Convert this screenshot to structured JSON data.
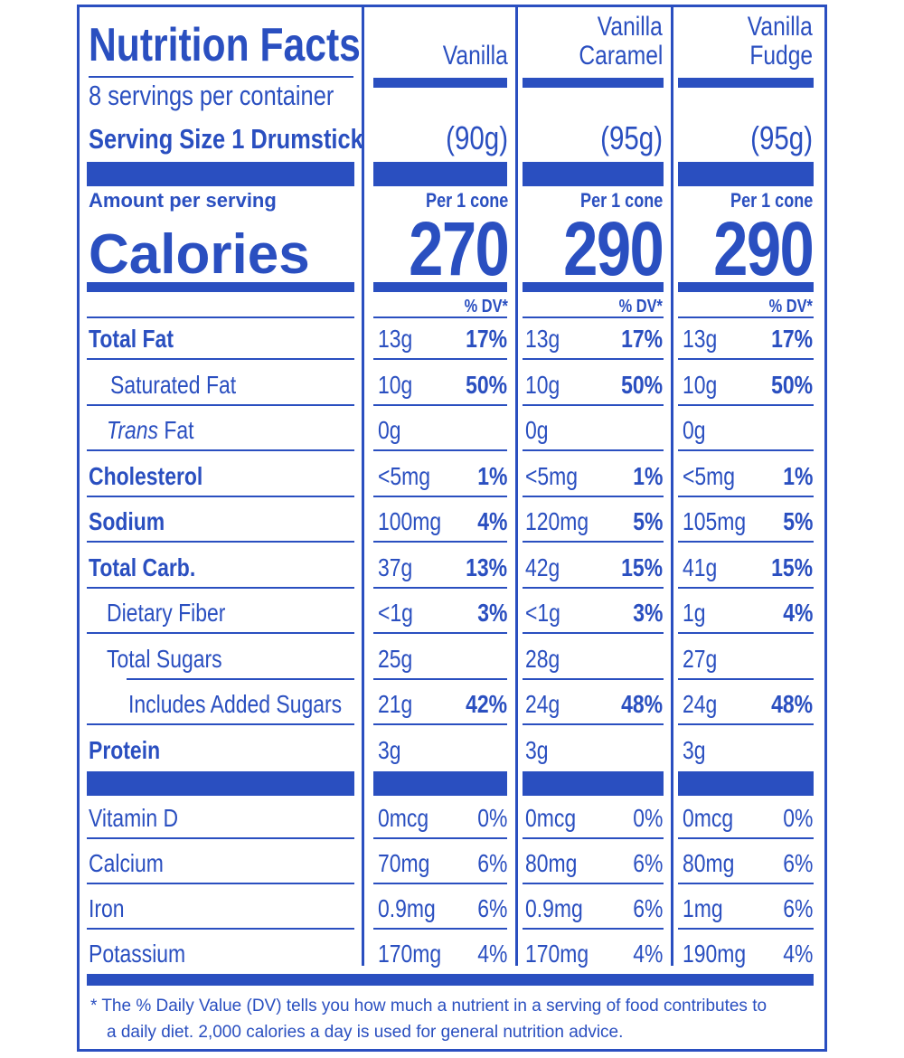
{
  "panel": {
    "title": "Nutrition Facts",
    "servings_per_container": "8 servings per container",
    "serving_size_label": "Serving Size 1 Drumstick",
    "amount_per_serving": "Amount per serving",
    "calories_label": "Calories",
    "per_cone": "Per 1 cone",
    "dv_header": "% DV*"
  },
  "colors": {
    "ink": "#2a4fc0",
    "background": "#ffffff"
  },
  "flavors": [
    {
      "name_line1": "",
      "name_line2": "Vanilla",
      "serving_grams": "(90g)",
      "calories": "270"
    },
    {
      "name_line1": "Vanilla",
      "name_line2": "Caramel",
      "serving_grams": "(95g)",
      "calories": "290"
    },
    {
      "name_line1": "Vanilla",
      "name_line2": "Fudge",
      "serving_grams": "(95g)",
      "calories": "290"
    }
  ],
  "nutrients": [
    {
      "name": "Total Fat",
      "values": [
        [
          "13g",
          "17%"
        ],
        [
          "13g",
          "17%"
        ],
        [
          "13g",
          "17%"
        ]
      ]
    },
    {
      "name": "Saturated Fat",
      "values": [
        [
          "10g",
          "50%"
        ],
        [
          "10g",
          "50%"
        ],
        [
          "10g",
          "50%"
        ]
      ]
    },
    {
      "name_italic": "Trans",
      "name": " Fat",
      "values": [
        [
          "0g",
          ""
        ],
        [
          "0g",
          ""
        ],
        [
          "0g",
          ""
        ]
      ]
    },
    {
      "name": "Cholesterol",
      "values": [
        [
          "<5mg",
          "1%"
        ],
        [
          "<5mg",
          "1%"
        ],
        [
          "<5mg",
          "1%"
        ]
      ]
    },
    {
      "name": "Sodium",
      "values": [
        [
          "100mg",
          "4%"
        ],
        [
          "120mg",
          "5%"
        ],
        [
          "105mg",
          "5%"
        ]
      ]
    },
    {
      "name": "Total Carb.",
      "values": [
        [
          "37g",
          "13%"
        ],
        [
          "42g",
          "15%"
        ],
        [
          "41g",
          "15%"
        ]
      ]
    },
    {
      "name": "Dietary Fiber",
      "values": [
        [
          "<1g",
          "3%"
        ],
        [
          "<1g",
          "3%"
        ],
        [
          "1g",
          "4%"
        ]
      ]
    },
    {
      "name": "Total Sugars",
      "values": [
        [
          "25g",
          ""
        ],
        [
          "28g",
          ""
        ],
        [
          "27g",
          ""
        ]
      ]
    },
    {
      "name": "Includes Added Sugars",
      "values": [
        [
          "21g",
          "42%"
        ],
        [
          "24g",
          "48%"
        ],
        [
          "24g",
          "48%"
        ]
      ]
    },
    {
      "name": "Protein",
      "values": [
        [
          "3g",
          ""
        ],
        [
          "3g",
          ""
        ],
        [
          "3g",
          ""
        ]
      ]
    }
  ],
  "vitamins": [
    {
      "name": "Vitamin D",
      "values": [
        [
          "0mcg",
          "0%"
        ],
        [
          "0mcg",
          "0%"
        ],
        [
          "0mcg",
          "0%"
        ]
      ]
    },
    {
      "name": "Calcium",
      "values": [
        [
          "70mg",
          "6%"
        ],
        [
          "80mg",
          "6%"
        ],
        [
          "80mg",
          "6%"
        ]
      ]
    },
    {
      "name": "Iron",
      "values": [
        [
          "0.9mg",
          "6%"
        ],
        [
          "0.9mg",
          "6%"
        ],
        [
          "1mg",
          "6%"
        ]
      ]
    },
    {
      "name": "Potassium",
      "values": [
        [
          "170mg",
          "4%"
        ],
        [
          "170mg",
          "4%"
        ],
        [
          "190mg",
          "4%"
        ]
      ]
    }
  ],
  "footnote": {
    "line1": "* The % Daily Value (DV) tells you how much a nutrient in a serving of food contributes to",
    "line2": "a daily diet. 2,000 calories a day is used for general nutrition advice."
  }
}
